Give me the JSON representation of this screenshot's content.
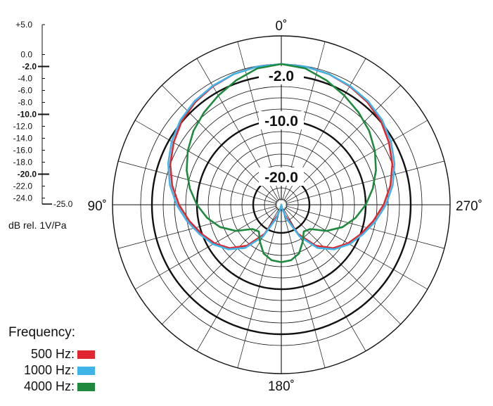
{
  "chart_data": {
    "type": "polar",
    "angle_labels": [
      {
        "angle": 0,
        "text": "0˚"
      },
      {
        "angle": 90,
        "text": "90˚"
      },
      {
        "angle": 180,
        "text": "180˚"
      },
      {
        "angle": 270,
        "text": "270˚"
      }
    ],
    "radial_range": [
      -25,
      5
    ],
    "radial_tick_labels": [
      {
        "value": 5,
        "text": "+5.0",
        "bold": false
      },
      {
        "value": 0,
        "text": "0.0",
        "bold": false
      },
      {
        "value": -2,
        "text": "-2.0",
        "bold": true
      },
      {
        "value": -4,
        "text": "-4.0",
        "bold": false
      },
      {
        "value": -6,
        "text": "-6.0",
        "bold": false
      },
      {
        "value": -8,
        "text": "-8.0",
        "bold": false
      },
      {
        "value": -10,
        "text": "-10.0",
        "bold": true
      },
      {
        "value": -12,
        "text": "-12.0",
        "bold": false
      },
      {
        "value": -14,
        "text": "-14.0",
        "bold": false
      },
      {
        "value": -16,
        "text": "-16.0",
        "bold": false
      },
      {
        "value": -18,
        "text": "-18.0",
        "bold": false
      },
      {
        "value": -20,
        "text": "-20.0",
        "bold": true
      },
      {
        "value": -22,
        "text": "-22.0",
        "bold": false
      },
      {
        "value": -24,
        "text": "-24.0",
        "bold": false
      },
      {
        "value": -25,
        "text": "-25.0",
        "bold": false
      }
    ],
    "ring_labels": [
      {
        "value": -2,
        "text": "-2.0"
      },
      {
        "value": -10,
        "text": "-10.0"
      },
      {
        "value": -20,
        "text": "-20.0"
      }
    ],
    "unit_label": "dB rel. 1V/Pa",
    "legend_title": "Frequency:",
    "series": [
      {
        "name": "500 Hz:",
        "color": "#e0262e",
        "angles": [
          0,
          10,
          20,
          30,
          40,
          50,
          60,
          70,
          80,
          90,
          100,
          110,
          120,
          130,
          140,
          150,
          160,
          170,
          180,
          190,
          200,
          210,
          220,
          230,
          240,
          250,
          260,
          270,
          280,
          290,
          300,
          310,
          320,
          330,
          340,
          350
        ],
        "values": [
          0.0,
          -0.1,
          -0.3,
          -0.7,
          -1.2,
          -1.9,
          -2.9,
          -4.0,
          -5.3,
          -6.8,
          -8.4,
          -9.9,
          -11.3,
          -13.0,
          -15.5,
          -19.0,
          -23.0,
          -24.5,
          -25.0,
          -24.5,
          -23.0,
          -19.0,
          -15.5,
          -13.0,
          -11.3,
          -9.9,
          -8.4,
          -6.8,
          -5.3,
          -4.0,
          -2.9,
          -1.9,
          -1.2,
          -0.7,
          -0.3,
          -0.1
        ]
      },
      {
        "name": "1000 Hz:",
        "color": "#3fb4e8",
        "angles": [
          0,
          10,
          20,
          30,
          40,
          50,
          60,
          70,
          80,
          90,
          100,
          110,
          120,
          130,
          140,
          150,
          160,
          170,
          180,
          190,
          200,
          210,
          220,
          230,
          240,
          250,
          260,
          270,
          280,
          290,
          300,
          310,
          320,
          330,
          340,
          350
        ],
        "values": [
          0.0,
          -0.1,
          -0.3,
          -0.6,
          -1.0,
          -1.6,
          -2.5,
          -3.6,
          -4.9,
          -6.4,
          -8.0,
          -9.6,
          -11.0,
          -12.7,
          -15.0,
          -18.5,
          -22.5,
          -24.5,
          -25.0,
          -24.5,
          -22.5,
          -18.5,
          -15.0,
          -12.7,
          -11.0,
          -9.6,
          -8.0,
          -6.4,
          -4.9,
          -3.6,
          -2.5,
          -1.6,
          -1.0,
          -0.6,
          -0.3,
          -0.1
        ]
      },
      {
        "name": "4000 Hz:",
        "color": "#1f8a3e",
        "angles": [
          0,
          10,
          20,
          30,
          40,
          50,
          60,
          70,
          80,
          90,
          100,
          110,
          120,
          130,
          140,
          150,
          160,
          170,
          180,
          190,
          200,
          210,
          220,
          230,
          240,
          250,
          260,
          270,
          280,
          290,
          300,
          310,
          320,
          330,
          340,
          350
        ],
        "values": [
          0.0,
          -0.4,
          -1.5,
          -2.6,
          -3.6,
          -4.6,
          -5.8,
          -7.1,
          -8.5,
          -10.0,
          -11.6,
          -13.4,
          -15.7,
          -18.3,
          -18.8,
          -17.4,
          -15.8,
          -15.0,
          -14.8,
          -15.0,
          -15.8,
          -17.4,
          -18.8,
          -18.3,
          -15.7,
          -13.4,
          -11.6,
          -10.0,
          -8.5,
          -7.1,
          -5.8,
          -4.6,
          -3.6,
          -2.6,
          -1.5,
          -0.4
        ]
      }
    ]
  }
}
